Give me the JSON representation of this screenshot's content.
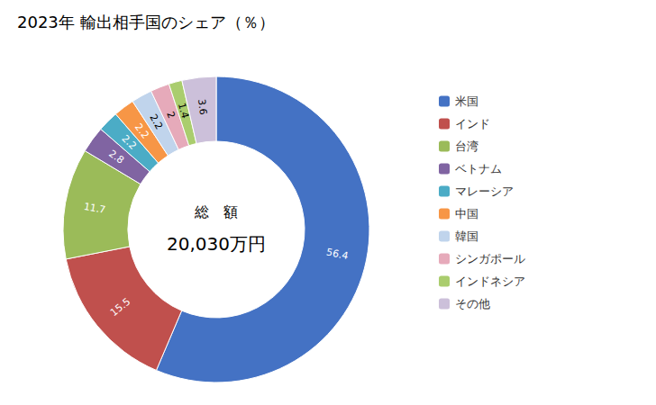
{
  "chart_data": {
    "type": "pie",
    "title": "2023年 輸出相手国のシェア（％）",
    "annotations": [
      "総　額",
      "20,030万円"
    ],
    "categories": [
      "米国",
      "インド",
      "台湾",
      "ベトナム",
      "マレーシア",
      "中国",
      "韓国",
      "シンガポール",
      "インドネシア",
      "その他"
    ],
    "values": [
      56.4,
      15.5,
      11.7,
      2.8,
      2.2,
      2.2,
      2.2,
      2.0,
      1.4,
      3.6
    ],
    "colors": [
      "#4472C4",
      "#C0504D",
      "#9BBB59",
      "#8064A2",
      "#4BACC6",
      "#F79646",
      "#C0D4EC",
      "#E6AABA",
      "#AACD6E",
      "#CCC0DA"
    ],
    "data_labels": true,
    "legend": "right"
  }
}
